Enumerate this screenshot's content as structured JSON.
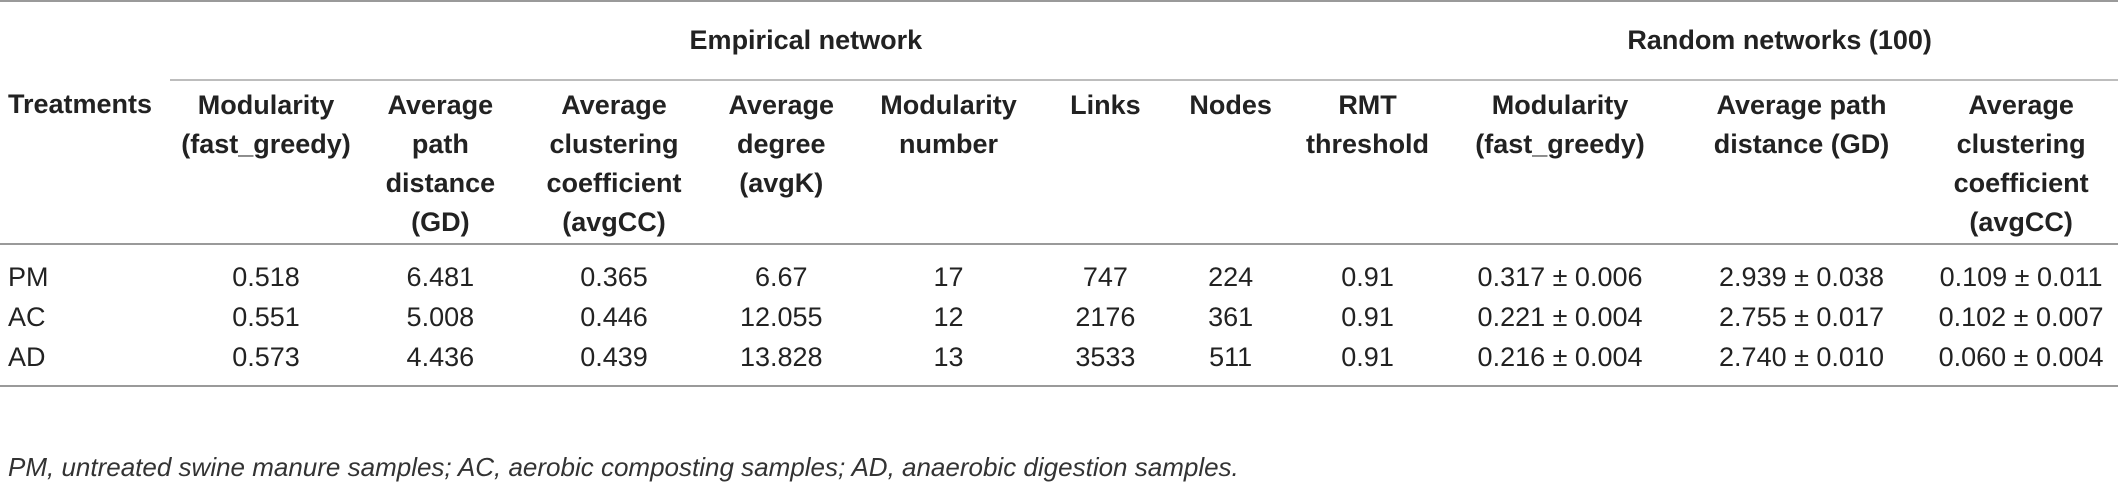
{
  "group_headers": {
    "empirical": "Empirical network",
    "random": "Random networks (100)"
  },
  "column_headers": [
    [
      "Treatments"
    ],
    [
      "Modularity",
      "(fast_greedy)"
    ],
    [
      "Average",
      "path",
      "distance",
      "(GD)"
    ],
    [
      "Average",
      "clustering",
      "coefficient",
      "(avgCC)"
    ],
    [
      "Average",
      "degree",
      "(avgK)"
    ],
    [
      "Modularity",
      "number"
    ],
    [
      "Links"
    ],
    [
      "Nodes"
    ],
    [
      "RMT",
      "threshold"
    ],
    [
      "Modularity",
      "(fast_greedy)"
    ],
    [
      "Average path",
      "distance (GD)"
    ],
    [
      "Average",
      "clustering",
      "coefficient",
      "(avgCC)"
    ]
  ],
  "rows": [
    [
      "PM",
      "0.518",
      "6.481",
      "0.365",
      "6.67",
      "17",
      "747",
      "224",
      "0.91",
      "0.317 ± 0.006",
      "2.939 ± 0.038",
      "0.109 ± 0.011"
    ],
    [
      "AC",
      "0.551",
      "5.008",
      "0.446",
      "12.055",
      "12",
      "2176",
      "361",
      "0.91",
      "0.221 ± 0.004",
      "2.755 ± 0.017",
      "0.102 ± 0.007"
    ],
    [
      "AD",
      "0.573",
      "4.436",
      "0.439",
      "13.828",
      "13",
      "3533",
      "511",
      "0.91",
      "0.216 ± 0.004",
      "2.740 ± 0.010",
      "0.060 ± 0.004"
    ]
  ],
  "footnote": "PM, untreated swine manure samples; AC, aerobic composting samples; AD, anaerobic digestion samples."
}
